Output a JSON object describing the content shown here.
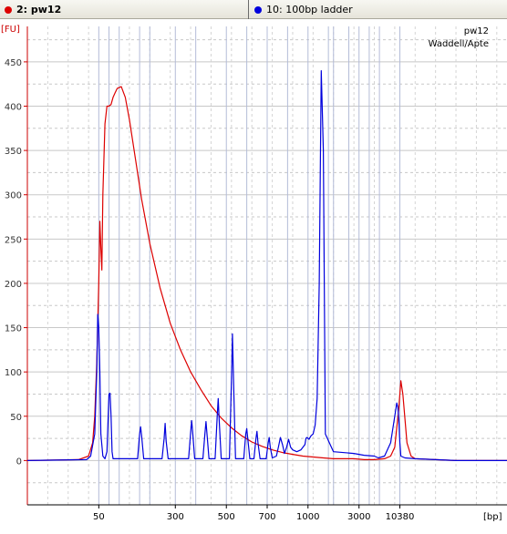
{
  "tabs": [
    {
      "label": "2: pw12",
      "color": "#dd0000"
    },
    {
      "label": "10: 100bp ladder",
      "color": "#0000dd"
    }
  ],
  "chart_data": {
    "type": "line",
    "y_unit": "[FU]",
    "x_unit": "[bp]",
    "annotations": [
      "pw12",
      "Waddell/Apte"
    ],
    "ylim": [
      -50,
      490
    ],
    "y_ticks": [
      0,
      50,
      100,
      150,
      200,
      250,
      300,
      350,
      400,
      450
    ],
    "x_tick_labels": [
      {
        "label": "50",
        "pos": 35
      },
      {
        "label": "300",
        "pos": 72.5
      },
      {
        "label": "500",
        "pos": 97.5
      },
      {
        "label": "700",
        "pos": 117.5
      },
      {
        "label": "1000",
        "pos": 137.5
      },
      {
        "label": "3000",
        "pos": 162.5
      },
      {
        "label": "10380",
        "pos": 182.5
      }
    ],
    "x_range": [
      0,
      235
    ],
    "marker_lines": [
      35,
      40,
      45,
      55,
      60,
      72.5,
      82.5,
      97.5,
      107.5,
      117.5,
      127.5,
      137.5,
      147.5,
      150,
      157.5,
      162.5,
      167.5,
      172.5,
      182.5
    ],
    "grid": true,
    "series": [
      {
        "name": "2: pw12",
        "color": "#dd0000",
        "x": [
          0,
          25,
          30,
          32,
          33,
          34,
          35,
          35.5,
          36,
          36.5,
          37,
          38,
          39,
          40,
          41,
          42,
          43,
          44,
          46,
          48,
          50,
          53,
          56,
          60,
          65,
          70,
          75,
          80,
          85,
          90,
          95,
          100,
          105,
          110,
          115,
          120,
          125,
          130,
          135,
          140,
          145,
          150,
          155,
          160,
          165,
          170,
          175,
          178,
          180,
          182,
          183,
          184,
          186,
          188,
          190,
          200,
          210,
          220,
          235
        ],
        "y": [
          0,
          1,
          5,
          20,
          50,
          110,
          200,
          270,
          240,
          215,
          300,
          380,
          400,
          400,
          402,
          410,
          415,
          420,
          422,
          410,
          385,
          340,
          295,
          245,
          195,
          155,
          125,
          100,
          80,
          62,
          48,
          37,
          28,
          21,
          16,
          12,
          9,
          7,
          5,
          4,
          3,
          2,
          2,
          2,
          1,
          1,
          2,
          5,
          15,
          60,
          90,
          75,
          20,
          5,
          2,
          1,
          0,
          0,
          0
        ]
      },
      {
        "name": "10: 100bp ladder",
        "color": "#0000dd",
        "x": [
          0,
          29,
          31,
          33,
          34,
          34.5,
          35,
          35.5,
          36,
          37,
          38,
          39,
          40,
          40.5,
          41,
          41.5,
          42,
          54,
          55,
          55.5,
          56,
          57,
          66,
          67,
          67.5,
          68,
          69,
          79,
          80,
          80.5,
          81,
          82,
          86,
          87,
          87.5,
          88,
          89,
          92,
          93,
          93.5,
          94,
          95,
          99,
          100,
          100.5,
          101,
          102,
          106,
          107,
          107.5,
          108,
          109,
          111,
          112,
          112.5,
          113,
          114,
          117,
          118,
          118.5,
          119,
          120,
          122,
          123,
          124,
          125,
          126,
          127,
          128,
          129,
          130,
          132,
          134,
          136,
          136.5,
          137,
          137.5,
          138,
          138.5,
          139,
          140,
          141,
          142,
          143,
          144,
          145,
          146,
          150,
          160,
          165,
          170,
          172,
          175,
          178,
          180,
          181,
          181.5,
          182,
          182.5,
          183,
          185,
          190,
          200,
          210,
          220,
          235
        ],
        "y": [
          0,
          1,
          5,
          30,
          100,
          165,
          150,
          100,
          30,
          5,
          2,
          10,
          75,
          76,
          50,
          10,
          2,
          2,
          30,
          38,
          28,
          2,
          2,
          25,
          42,
          22,
          2,
          2,
          32,
          45,
          32,
          2,
          2,
          30,
          44,
          30,
          2,
          2,
          50,
          70,
          45,
          2,
          2,
          90,
          143,
          90,
          2,
          2,
          30,
          36,
          25,
          2,
          2,
          25,
          33,
          20,
          2,
          2,
          20,
          26,
          15,
          3,
          5,
          15,
          26,
          18,
          8,
          15,
          24,
          15,
          12,
          10,
          12,
          18,
          25,
          26,
          25,
          24,
          26,
          28,
          30,
          40,
          70,
          200,
          440,
          350,
          30,
          10,
          8,
          6,
          5,
          3,
          5,
          20,
          50,
          65,
          60,
          45,
          20,
          5,
          3,
          2,
          1,
          0,
          0,
          0
        ]
      }
    ]
  }
}
